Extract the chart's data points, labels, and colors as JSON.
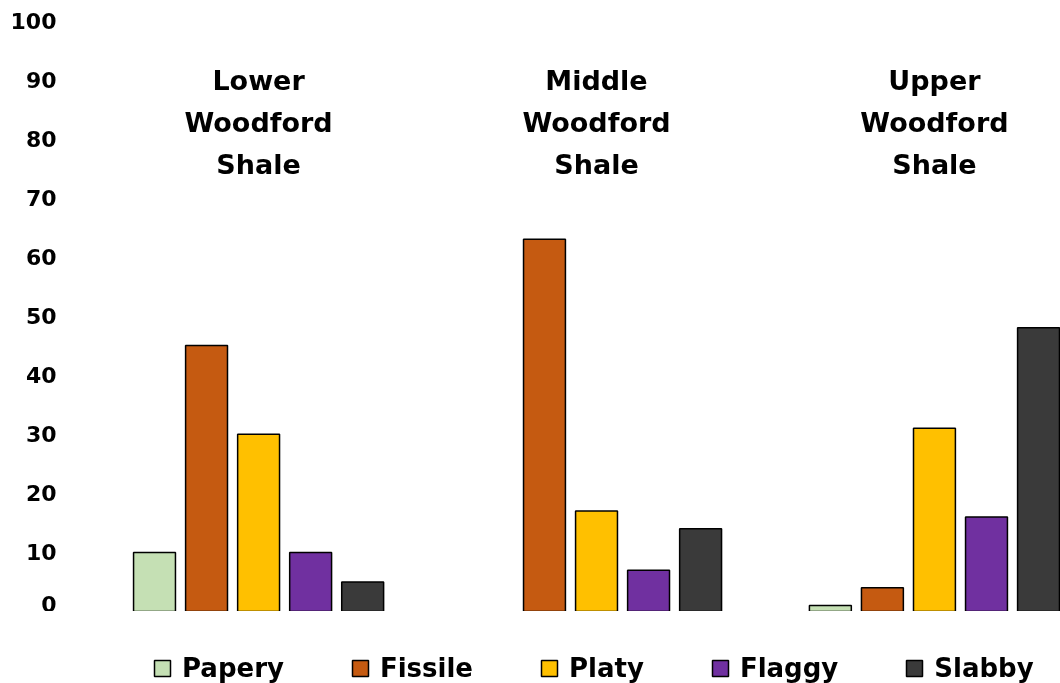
{
  "chart_data": {
    "type": "bar",
    "categories": [
      "Lower Woodford Shale",
      "Middle Woodford Shale",
      "Upper Woodford Shale"
    ],
    "series": [
      {
        "name": "Papery",
        "color": "#c5e0b4",
        "values": [
          10,
          null,
          1
        ]
      },
      {
        "name": "Fissile",
        "color": "#c55a11",
        "values": [
          45,
          63,
          4
        ]
      },
      {
        "name": "Platy",
        "color": "#ffc000",
        "values": [
          30,
          17,
          31
        ]
      },
      {
        "name": "Flaggy",
        "color": "#7030a0",
        "values": [
          10,
          7,
          16
        ]
      },
      {
        "name": "Slabby",
        "color": "#3a3a3a",
        "values": [
          5,
          14,
          48
        ]
      }
    ],
    "ylim": [
      0,
      100
    ],
    "yticks": [
      0,
      10,
      20,
      30,
      40,
      50,
      60,
      70,
      80,
      90,
      100
    ],
    "grid": false,
    "legend": "bottom"
  }
}
